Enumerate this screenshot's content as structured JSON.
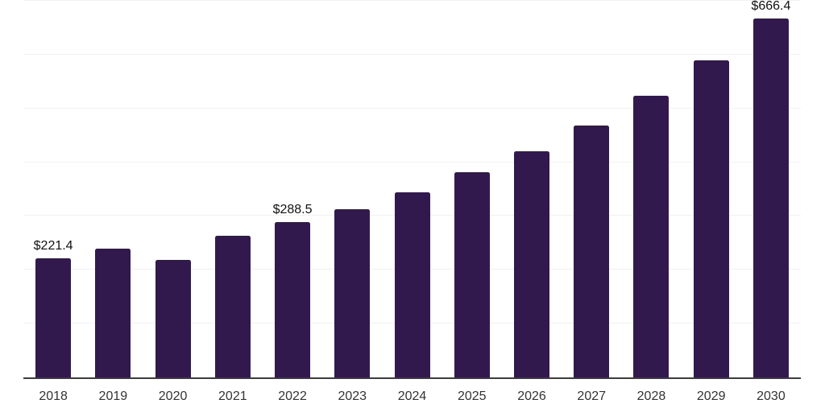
{
  "chart_data": {
    "type": "bar",
    "title": "",
    "xlabel": "",
    "ylabel": "",
    "categories": [
      "2018",
      "2019",
      "2020",
      "2021",
      "2022",
      "2023",
      "2024",
      "2025",
      "2026",
      "2027",
      "2028",
      "2029",
      "2030"
    ],
    "values": [
      221.4,
      239.5,
      218.0,
      263.0,
      288.5,
      313.0,
      344.0,
      381.5,
      421.0,
      468.0,
      524.0,
      590.0,
      666.4
    ],
    "data_labels": [
      "$221.4",
      null,
      null,
      null,
      "$288.5",
      null,
      null,
      null,
      null,
      null,
      null,
      null,
      "$666.4"
    ],
    "currency_prefix": "$",
    "ylim": [
      0,
      700
    ],
    "gridline_interval": 100,
    "grid": "horizontal-only",
    "y_axis_tick_labels": "none",
    "legend": "none",
    "bar_color": "#32194D"
  },
  "style": {
    "background_color": "#ffffff",
    "gridline_color": "#f1f1f1",
    "axis_line_color": "#3c3c3c",
    "data_label_color": "#111111",
    "tick_label_color": "#333333"
  }
}
